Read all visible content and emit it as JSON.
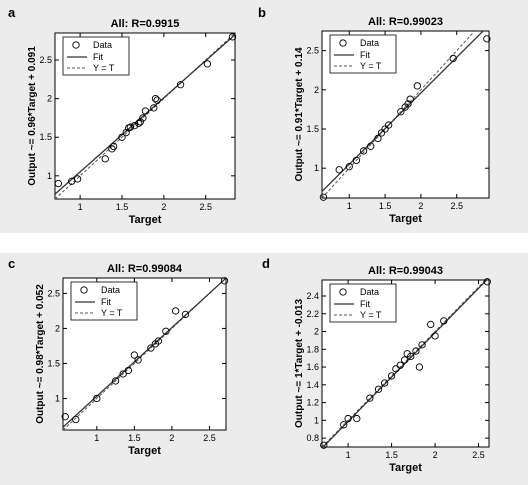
{
  "chart_data": [
    {
      "id": "a",
      "panel_label": "a",
      "type": "scatter",
      "title": "All: R=0.9915",
      "xlabel": "Target",
      "ylabel": "Output ~= 0.96*Target + 0.091",
      "xlim": [
        0.7,
        2.85
      ],
      "ylim": [
        0.7,
        2.85
      ],
      "xticks": [
        1,
        1.5,
        2,
        2.5
      ],
      "yticks": [
        1,
        1.5,
        2,
        2.5
      ],
      "fit": {
        "slope": 0.96,
        "intercept": 0.091
      },
      "legend": {
        "position": "top-left",
        "entries": [
          "Data",
          "Fit",
          "Y = T"
        ]
      },
      "points": [
        [
          0.74,
          0.9
        ],
        [
          0.9,
          0.93
        ],
        [
          0.97,
          0.96
        ],
        [
          1.3,
          1.22
        ],
        [
          1.38,
          1.35
        ],
        [
          1.4,
          1.38
        ],
        [
          1.5,
          1.5
        ],
        [
          1.55,
          1.56
        ],
        [
          1.58,
          1.62
        ],
        [
          1.6,
          1.63
        ],
        [
          1.65,
          1.65
        ],
        [
          1.7,
          1.68
        ],
        [
          1.72,
          1.7
        ],
        [
          1.75,
          1.75
        ],
        [
          1.78,
          1.84
        ],
        [
          1.88,
          1.88
        ],
        [
          1.9,
          2.0
        ],
        [
          1.92,
          1.98
        ],
        [
          2.2,
          2.18
        ],
        [
          2.52,
          2.45
        ],
        [
          2.82,
          2.8
        ]
      ]
    },
    {
      "id": "b",
      "panel_label": "b",
      "type": "scatter",
      "title": "All: R=0.99023",
      "xlabel": "Target",
      "ylabel": "Output ~= 0.91*Target + 0.14",
      "xlim": [
        0.62,
        2.95
      ],
      "ylim": [
        0.62,
        2.75
      ],
      "xticks": [
        1,
        1.5,
        2,
        2.5
      ],
      "yticks": [
        1,
        1.5,
        2,
        2.5
      ],
      "fit": {
        "slope": 0.91,
        "intercept": 0.14
      },
      "legend": {
        "position": "top-left",
        "entries": [
          "Data",
          "Fit",
          "Y = T"
        ]
      },
      "points": [
        [
          0.64,
          0.63
        ],
        [
          0.86,
          0.98
        ],
        [
          1.0,
          1.02
        ],
        [
          1.1,
          1.1
        ],
        [
          1.2,
          1.22
        ],
        [
          1.3,
          1.28
        ],
        [
          1.4,
          1.38
        ],
        [
          1.45,
          1.45
        ],
        [
          1.5,
          1.5
        ],
        [
          1.55,
          1.55
        ],
        [
          1.72,
          1.72
        ],
        [
          1.78,
          1.78
        ],
        [
          1.82,
          1.82
        ],
        [
          1.85,
          1.88
        ],
        [
          1.95,
          2.05
        ],
        [
          2.45,
          2.4
        ],
        [
          2.92,
          2.65
        ]
      ]
    },
    {
      "id": "c",
      "panel_label": "c",
      "type": "scatter",
      "title": "All: R=0.99084",
      "xlabel": "Target",
      "ylabel": "Output ~= 0.98*Target + 0.052",
      "xlim": [
        0.55,
        2.72
      ],
      "ylim": [
        0.55,
        2.72
      ],
      "xticks": [
        1,
        1.5,
        2,
        2.5
      ],
      "yticks": [
        1,
        1.5,
        2,
        2.5
      ],
      "fit": {
        "slope": 0.98,
        "intercept": 0.052
      },
      "legend": {
        "position": "top-left",
        "entries": [
          "Data",
          "Fit",
          "Y = T"
        ]
      },
      "points": [
        [
          0.58,
          0.74
        ],
        [
          0.72,
          0.7
        ],
        [
          1.0,
          1.0
        ],
        [
          1.25,
          1.25
        ],
        [
          1.35,
          1.35
        ],
        [
          1.42,
          1.4
        ],
        [
          1.5,
          1.62
        ],
        [
          1.55,
          1.55
        ],
        [
          1.72,
          1.72
        ],
        [
          1.78,
          1.78
        ],
        [
          1.82,
          1.82
        ],
        [
          1.92,
          1.96
        ],
        [
          2.05,
          2.25
        ],
        [
          2.18,
          2.2
        ],
        [
          2.7,
          2.68
        ]
      ]
    },
    {
      "id": "d",
      "panel_label": "d",
      "type": "scatter",
      "title": "All: R=0.99043",
      "xlabel": "Target",
      "ylabel": "Output ~= 1*Target + -0.013",
      "xlim": [
        0.7,
        2.62
      ],
      "ylim": [
        0.7,
        2.58
      ],
      "xticks": [
        1,
        1.5,
        2,
        2.5
      ],
      "yticks": [
        0.8,
        1,
        1.2,
        1.4,
        1.6,
        1.8,
        2,
        2.2,
        2.4
      ],
      "fit": {
        "slope": 1.0,
        "intercept": -0.013
      },
      "legend": {
        "position": "top-left",
        "entries": [
          "Data",
          "Fit",
          "Y = T"
        ]
      },
      "points": [
        [
          0.72,
          0.72
        ],
        [
          0.95,
          0.95
        ],
        [
          1.0,
          1.02
        ],
        [
          1.1,
          1.02
        ],
        [
          1.25,
          1.25
        ],
        [
          1.35,
          1.35
        ],
        [
          1.42,
          1.42
        ],
        [
          1.5,
          1.5
        ],
        [
          1.55,
          1.58
        ],
        [
          1.6,
          1.62
        ],
        [
          1.65,
          1.68
        ],
        [
          1.68,
          1.75
        ],
        [
          1.72,
          1.72
        ],
        [
          1.78,
          1.78
        ],
        [
          1.82,
          1.6
        ],
        [
          1.85,
          1.85
        ],
        [
          1.95,
          2.08
        ],
        [
          2.0,
          1.95
        ],
        [
          2.1,
          2.12
        ],
        [
          2.6,
          2.56
        ]
      ]
    }
  ]
}
